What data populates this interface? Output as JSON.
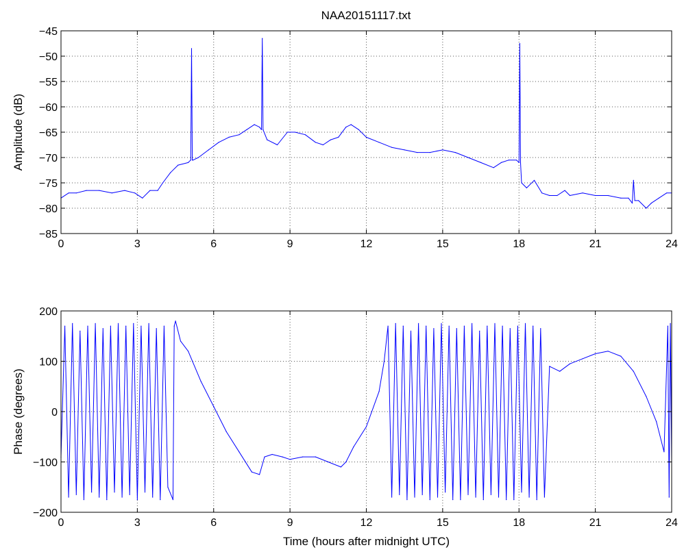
{
  "figure": {
    "title": "NAA20151117.txt",
    "line_color": "#0000ff"
  },
  "chart_data": [
    {
      "type": "line",
      "title": "NAA20151117.txt",
      "xlabel": "",
      "ylabel": "Amplitude (dB)",
      "xlim": [
        0,
        24
      ],
      "ylim": [
        -85,
        -45
      ],
      "xticks": [
        0,
        3,
        6,
        9,
        12,
        15,
        18,
        21,
        24
      ],
      "yticks": [
        -85,
        -80,
        -75,
        -70,
        -65,
        -60,
        -55,
        -50,
        -45
      ],
      "grid": true,
      "series": [
        {
          "color": "#0000ff",
          "x": [
            0,
            0.3,
            0.6,
            1,
            1.5,
            2,
            2.5,
            2.9,
            3.2,
            3.5,
            3.8,
            4,
            4.3,
            4.6,
            5,
            5.1,
            5.13,
            5.16,
            5.19,
            5.4,
            5.8,
            6.2,
            6.6,
            7,
            7.3,
            7.6,
            7.8,
            7.88,
            7.91,
            7.94,
            8.1,
            8.5,
            8.9,
            9.2,
            9.6,
            10,
            10.3,
            10.6,
            10.9,
            11.2,
            11.4,
            11.7,
            12,
            12.5,
            13,
            13.5,
            14,
            14.5,
            15,
            15.5,
            16,
            16.5,
            17,
            17.3,
            17.6,
            17.9,
            18.0,
            18.03,
            18.06,
            18.1,
            18.3,
            18.6,
            18.9,
            19.2,
            19.5,
            19.8,
            20,
            20.5,
            21,
            21.5,
            22,
            22.3,
            22.45,
            22.5,
            22.55,
            22.7,
            23,
            23.2,
            23.5,
            23.8,
            24
          ],
          "y": [
            -78,
            -77,
            -77,
            -76.5,
            -76.5,
            -77,
            -76.5,
            -77,
            -78,
            -76.5,
            -76.5,
            -75,
            -73,
            -71.5,
            -71,
            -70.5,
            -48.5,
            -70.5,
            -70.5,
            -70,
            -68.5,
            -67,
            -66,
            -65.5,
            -64.5,
            -63.5,
            -64,
            -64.5,
            -46.5,
            -64.5,
            -66.5,
            -67.5,
            -65,
            -65,
            -65.5,
            -67,
            -67.5,
            -66.5,
            -66,
            -64,
            -63.5,
            -64.5,
            -66,
            -67,
            -68,
            -68.5,
            -69,
            -69,
            -68.5,
            -69,
            -70,
            -71,
            -72,
            -71,
            -70.5,
            -70.5,
            -71,
            -47.5,
            -71,
            -75,
            -76,
            -74.5,
            -77,
            -77.5,
            -77.5,
            -76.5,
            -77.5,
            -77,
            -77.5,
            -77.5,
            -78,
            -78,
            -79,
            -74.5,
            -78.5,
            -78.5,
            -80,
            -79,
            -78,
            -77,
            -77
          ]
        }
      ]
    },
    {
      "type": "line",
      "title": "",
      "xlabel": "Time (hours after midnight UTC)",
      "ylabel": "Phase (degrees)",
      "xlim": [
        0,
        24
      ],
      "ylim": [
        -200,
        200
      ],
      "xticks": [
        0,
        3,
        6,
        9,
        12,
        15,
        18,
        21,
        24
      ],
      "yticks": [
        -200,
        -100,
        0,
        100,
        200
      ],
      "grid": true,
      "series": [
        {
          "color": "#0000ff",
          "x": [
            0,
            0.15,
            0.3,
            0.45,
            0.6,
            0.75,
            0.9,
            1.05,
            1.2,
            1.35,
            1.5,
            1.65,
            1.8,
            1.95,
            2.1,
            2.25,
            2.4,
            2.55,
            2.7,
            2.85,
            3.0,
            3.15,
            3.3,
            3.45,
            3.6,
            3.75,
            3.9,
            4.05,
            4.2,
            4.4,
            4.45,
            4.5,
            4.7,
            5.0,
            5.5,
            6.0,
            6.5,
            7.0,
            7.5,
            7.8,
            8.0,
            8.3,
            8.7,
            9.0,
            9.5,
            10.0,
            10.5,
            11.0,
            11.2,
            11.5,
            12.0,
            12.5,
            12.7,
            12.85,
            13.0,
            13.15,
            13.3,
            13.45,
            13.6,
            13.75,
            13.9,
            14.05,
            14.2,
            14.35,
            14.5,
            14.65,
            14.8,
            14.95,
            15.1,
            15.25,
            15.4,
            15.55,
            15.7,
            15.85,
            16.0,
            16.15,
            16.3,
            16.45,
            16.6,
            16.75,
            16.9,
            17.05,
            17.2,
            17.35,
            17.5,
            17.65,
            17.8,
            17.95,
            18.1,
            18.25,
            18.4,
            18.55,
            18.7,
            18.85,
            19.0,
            19.2,
            19.6,
            20.0,
            20.5,
            21.0,
            21.5,
            22.0,
            22.5,
            23.0,
            23.4,
            23.7,
            23.85,
            23.9,
            23.95,
            24.0
          ],
          "y": [
            -90,
            170,
            -170,
            175,
            -165,
            160,
            -175,
            170,
            -160,
            175,
            -170,
            165,
            -175,
            170,
            -160,
            175,
            -170,
            170,
            -165,
            175,
            -175,
            170,
            -160,
            175,
            -170,
            165,
            -175,
            170,
            -150,
            -175,
            170,
            180,
            140,
            120,
            60,
            10,
            -40,
            -80,
            -120,
            -125,
            -90,
            -85,
            -90,
            -95,
            -90,
            -90,
            -100,
            -110,
            -100,
            -70,
            -30,
            40,
            100,
            170,
            -170,
            175,
            -165,
            170,
            -175,
            160,
            -170,
            175,
            -165,
            170,
            -175,
            165,
            -170,
            175,
            -160,
            170,
            -175,
            165,
            -175,
            170,
            -165,
            175,
            -170,
            160,
            -175,
            170,
            -165,
            175,
            -170,
            170,
            -175,
            165,
            -175,
            170,
            -160,
            175,
            -170,
            170,
            -175,
            165,
            -170,
            90,
            80,
            95,
            105,
            115,
            120,
            110,
            80,
            30,
            -20,
            -80,
            170,
            -170,
            175,
            -100
          ]
        }
      ]
    }
  ]
}
